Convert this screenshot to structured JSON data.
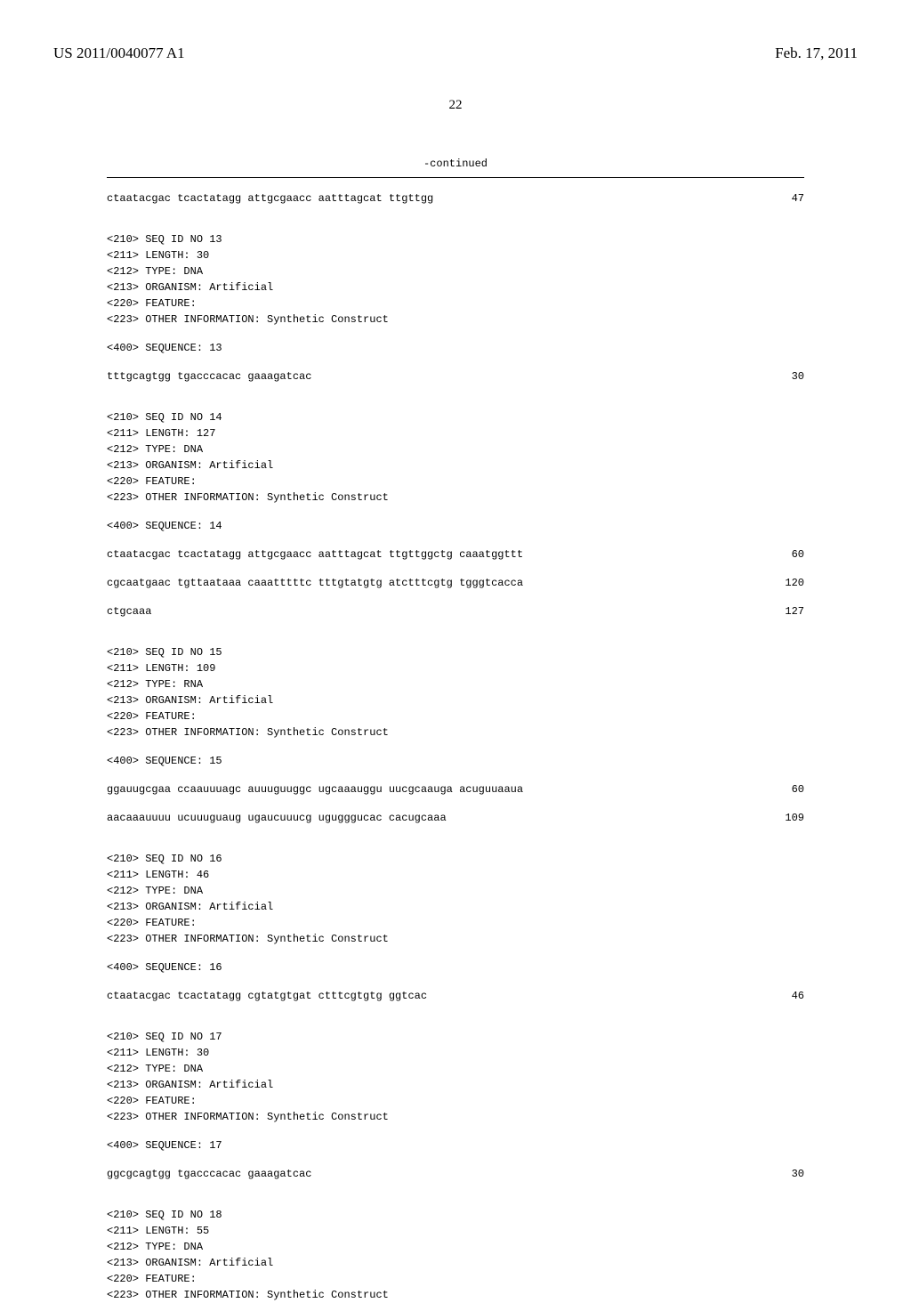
{
  "header": {
    "left": "US 2011/0040077 A1",
    "right": "Feb. 17, 2011"
  },
  "page_number": "22",
  "continued_label": "-continued",
  "colors": {
    "text": "#000000",
    "background": "#ffffff",
    "rule": "#000000"
  },
  "typography": {
    "header_font": "Times New Roman",
    "body_font": "Courier New",
    "header_fontsize": 17,
    "body_fontsize": 12,
    "page_number_fontsize": 15
  },
  "entries": [
    {
      "sequence_lines": [
        {
          "text": "ctaatacgac tcactatagg attgcgaacc aatttagcat ttgttgg",
          "num": "47"
        }
      ]
    },
    {
      "meta": [
        "<210> SEQ ID NO 13",
        "<211> LENGTH: 30",
        "<212> TYPE: DNA",
        "<213> ORGANISM: Artificial",
        "<220> FEATURE:",
        "<223> OTHER INFORMATION: Synthetic Construct"
      ],
      "seq_label": "<400> SEQUENCE: 13",
      "sequence_lines": [
        {
          "text": "tttgcagtgg tgacccacac gaaagatcac",
          "num": "30"
        }
      ]
    },
    {
      "meta": [
        "<210> SEQ ID NO 14",
        "<211> LENGTH: 127",
        "<212> TYPE: DNA",
        "<213> ORGANISM: Artificial",
        "<220> FEATURE:",
        "<223> OTHER INFORMATION: Synthetic Construct"
      ],
      "seq_label": "<400> SEQUENCE: 14",
      "sequence_lines": [
        {
          "text": "ctaatacgac tcactatagg attgcgaacc aatttagcat ttgttggctg caaatggttt",
          "num": "60"
        },
        {
          "text": "cgcaatgaac tgttaataaa caaatttttc tttgtatgtg atctttcgtg tgggtcacca",
          "num": "120"
        },
        {
          "text": "ctgcaaa",
          "num": "127"
        }
      ]
    },
    {
      "meta": [
        "<210> SEQ ID NO 15",
        "<211> LENGTH: 109",
        "<212> TYPE: RNA",
        "<213> ORGANISM: Artificial",
        "<220> FEATURE:",
        "<223> OTHER INFORMATION: Synthetic Construct"
      ],
      "seq_label": "<400> SEQUENCE: 15",
      "sequence_lines": [
        {
          "text": "ggauugcgaa ccaauuuagc auuuguuggc ugcaaauggu uucgcaauga acuguuaaua",
          "num": "60"
        },
        {
          "text": "aacaaauuuu ucuuuguaug ugaucuuucg ugugggucac cacugcaaa",
          "num": "109"
        }
      ]
    },
    {
      "meta": [
        "<210> SEQ ID NO 16",
        "<211> LENGTH: 46",
        "<212> TYPE: DNA",
        "<213> ORGANISM: Artificial",
        "<220> FEATURE:",
        "<223> OTHER INFORMATION: Synthetic Construct"
      ],
      "seq_label": "<400> SEQUENCE: 16",
      "sequence_lines": [
        {
          "text": "ctaatacgac tcactatagg cgtatgtgat ctttcgtgtg ggtcac",
          "num": "46"
        }
      ]
    },
    {
      "meta": [
        "<210> SEQ ID NO 17",
        "<211> LENGTH: 30",
        "<212> TYPE: DNA",
        "<213> ORGANISM: Artificial",
        "<220> FEATURE:",
        "<223> OTHER INFORMATION: Synthetic Construct"
      ],
      "seq_label": "<400> SEQUENCE: 17",
      "sequence_lines": [
        {
          "text": "ggcgcagtgg tgacccacac gaaagatcac",
          "num": "30"
        }
      ]
    },
    {
      "meta": [
        "<210> SEQ ID NO 18",
        "<211> LENGTH: 55",
        "<212> TYPE: DNA",
        "<213> ORGANISM: Artificial",
        "<220> FEATURE:",
        "<223> OTHER INFORMATION: Synthetic Construct"
      ]
    }
  ]
}
